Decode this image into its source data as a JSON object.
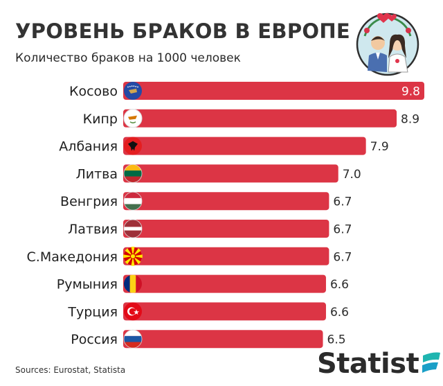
{
  "title": "УРОВЕНЬ БРАКОВ В ЕВРОПЕ",
  "subtitle": "Количество браков на 1000 человек",
  "source": "Sources: Eurostat, Statista",
  "brand": "Statist",
  "colors": {
    "bar": "#dc3545",
    "value_inside": "#ffffff",
    "value_outside": "#2b2b2b",
    "brand_accent": "#1fb5b0"
  },
  "chart_data": {
    "type": "bar",
    "orientation": "horizontal",
    "title": "УРОВЕНЬ БРАКОВ В ЕВРОПЕ",
    "subtitle": "Количество браков на 1000 человек",
    "categories": [
      "Косово",
      "Кипр",
      "Албания",
      "Литва",
      "Венгрия",
      "Латвия",
      "С.Македония",
      "Румыния",
      "Турция",
      "Россия"
    ],
    "values": [
      9.8,
      8.9,
      7.9,
      7.0,
      6.7,
      6.7,
      6.7,
      6.6,
      6.6,
      6.5
    ],
    "value_labels": [
      "9.8",
      "8.9",
      "7.9",
      "7.0",
      "6.7",
      "6.7",
      "6.7",
      "6.6",
      "6.6",
      "6.5"
    ],
    "flag_icons": [
      "kosovo-flag-icon",
      "cyprus-flag-icon",
      "albania-flag-icon",
      "lithuania-flag-icon",
      "hungary-flag-icon",
      "latvia-flag-icon",
      "north-macedonia-flag-icon",
      "romania-flag-icon",
      "turkey-flag-icon",
      "russia-flag-icon"
    ],
    "xlim": [
      0,
      9.8
    ],
    "grid": false,
    "legend": "none"
  }
}
